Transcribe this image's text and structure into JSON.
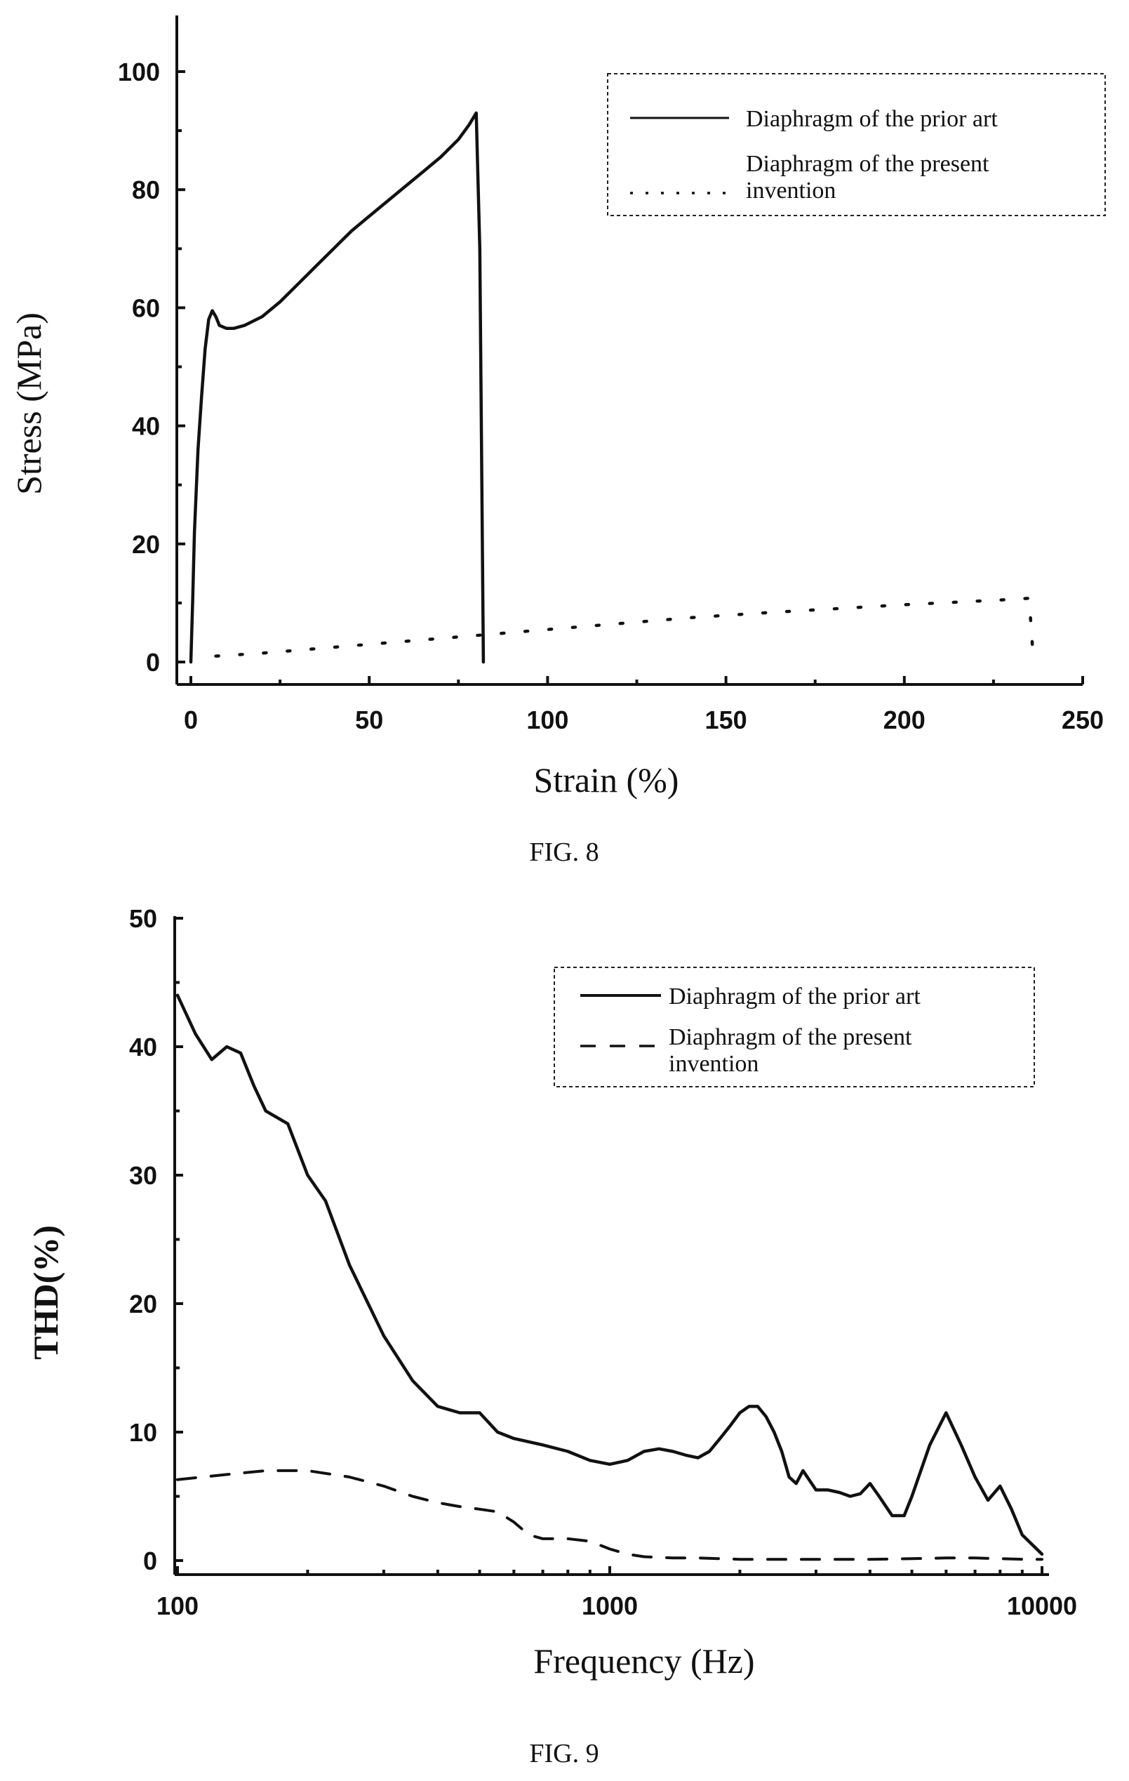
{
  "figures": [
    {
      "caption": "FIG. 8",
      "legend": [
        {
          "lines": [
            "Diaphragm of the prior art"
          ]
        },
        {
          "lines": [
            "Diaphragm of the present",
            "invention"
          ]
        }
      ]
    },
    {
      "caption": "FIG. 9",
      "legend": [
        {
          "lines": [
            "Diaphragm of the prior art"
          ]
        },
        {
          "lines": [
            "Diaphragm of the present",
            "invention"
          ]
        }
      ]
    }
  ],
  "chart_data": [
    {
      "type": "line",
      "title": "",
      "xlabel": "Strain (%)",
      "ylabel": "Stress (MPa)",
      "xlim": [
        -3,
        250
      ],
      "ylim": [
        -3,
        110
      ],
      "xscale": "linear",
      "xticks": [
        0,
        50,
        100,
        150,
        200,
        250
      ],
      "yticks": [
        0,
        20,
        40,
        60,
        80,
        100
      ],
      "xtick_labels": [
        "0",
        "50",
        "100",
        "150",
        "200",
        "250"
      ],
      "ytick_labels": [
        "0",
        "20",
        "40",
        "60",
        "80",
        "100"
      ],
      "grid": false,
      "legend_position": "top-right",
      "series": [
        {
          "name": "Diaphragm of the prior art",
          "style": "solid",
          "color": "#111111",
          "x": [
            0,
            0.5,
            1,
            2,
            3,
            4,
            5,
            6,
            7,
            8,
            10,
            12,
            15,
            20,
            25,
            30,
            35,
            40,
            45,
            50,
            55,
            60,
            65,
            70,
            75,
            78,
            80,
            81,
            82
          ],
          "y": [
            0,
            10,
            22,
            36,
            45,
            53,
            58,
            59.5,
            58.5,
            57,
            56.5,
            56.5,
            57,
            58.5,
            61,
            64,
            67,
            70,
            73,
            75.5,
            78,
            80.5,
            83,
            85.5,
            88.5,
            91,
            93,
            70,
            0
          ]
        },
        {
          "name": "Diaphragm of the present invention",
          "style": "dotted",
          "color": "#111111",
          "x": [
            7,
            20,
            40,
            60,
            80,
            100,
            120,
            140,
            160,
            180,
            200,
            220,
            230,
            235,
            236
          ],
          "y": [
            1,
            1.5,
            2.5,
            3.5,
            4.5,
            5.5,
            6.5,
            7.5,
            8.3,
            9.0,
            9.7,
            10.3,
            10.6,
            10.8,
            2
          ]
        }
      ]
    },
    {
      "type": "line",
      "title": "",
      "xlabel": "Frequency (Hz)",
      "ylabel": "THD(%)",
      "xlim": [
        100,
        10000
      ],
      "ylim": [
        -1,
        50
      ],
      "xscale": "log",
      "xticks": [
        100,
        1000,
        10000
      ],
      "yticks": [
        0,
        10,
        20,
        30,
        40,
        50
      ],
      "xtick_labels": [
        "100",
        "1000",
        "10000"
      ],
      "ytick_labels": [
        "0",
        "10",
        "20",
        "30",
        "40",
        "50"
      ],
      "grid": false,
      "legend_position": "top-right",
      "series": [
        {
          "name": "Diaphragm of the prior art",
          "style": "solid",
          "color": "#111111",
          "x": [
            100,
            110,
            120,
            130,
            140,
            150,
            160,
            180,
            200,
            220,
            250,
            300,
            350,
            400,
            450,
            500,
            550,
            600,
            700,
            800,
            900,
            1000,
            1100,
            1200,
            1300,
            1400,
            1500,
            1600,
            1700,
            1800,
            1900,
            2000,
            2100,
            2200,
            2300,
            2400,
            2500,
            2600,
            2700,
            2800,
            3000,
            3200,
            3400,
            3600,
            3800,
            4000,
            4200,
            4500,
            4800,
            5000,
            5500,
            6000,
            6500,
            7000,
            7500,
            8000,
            8500,
            9000,
            10000
          ],
          "y": [
            44,
            41,
            39,
            40,
            39.5,
            37,
            35,
            34,
            30,
            28,
            23,
            17.5,
            14,
            12,
            11.5,
            11.5,
            10,
            9.5,
            9,
            8.5,
            7.8,
            7.5,
            7.8,
            8.5,
            8.7,
            8.5,
            8.2,
            8.0,
            8.5,
            9.5,
            10.5,
            11.5,
            12.0,
            12.0,
            11.2,
            10,
            8.5,
            6.5,
            6.0,
            7.0,
            5.5,
            5.5,
            5.3,
            5.0,
            5.2,
            6.0,
            5.0,
            3.5,
            3.5,
            5.0,
            9.0,
            11.5,
            9.0,
            6.5,
            4.7,
            5.8,
            4.0,
            2.0,
            0.5
          ]
        },
        {
          "name": "Diaphragm of the present invention",
          "style": "dashed",
          "color": "#111111",
          "x": [
            100,
            130,
            160,
            200,
            250,
            300,
            350,
            400,
            450,
            500,
            550,
            600,
            650,
            700,
            800,
            900,
            1000,
            1100,
            1200,
            1400,
            1600,
            2000,
            2500,
            3000,
            4000,
            5000,
            6000,
            7000,
            8000,
            9000,
            10000
          ],
          "y": [
            6.3,
            6.7,
            7.0,
            7.0,
            6.5,
            5.8,
            5.0,
            4.5,
            4.2,
            4.0,
            3.8,
            3.0,
            2.0,
            1.7,
            1.7,
            1.5,
            0.9,
            0.5,
            0.3,
            0.2,
            0.2,
            0.1,
            0.1,
            0.1,
            0.1,
            0.15,
            0.2,
            0.2,
            0.15,
            0.1,
            0.1
          ]
        }
      ]
    }
  ]
}
